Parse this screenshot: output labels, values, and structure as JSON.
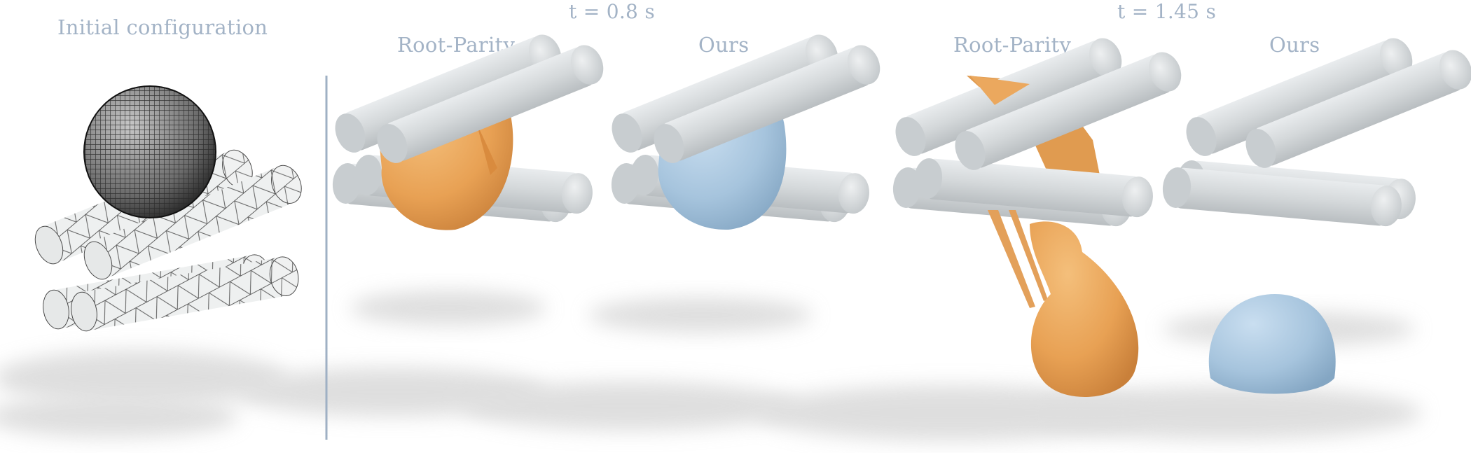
{
  "figure": {
    "initial_label": "Initial configuration",
    "times": [
      {
        "label": "t = 0.8 s",
        "methods": [
          "Root-Parity",
          "Ours"
        ]
      },
      {
        "label": "t = 1.45 s",
        "methods": [
          "Root-Parity",
          "Ours"
        ]
      }
    ]
  },
  "colors": {
    "label": "#a3b3c6",
    "divider": "#9fb0c4",
    "cylinder": "#d5d9db",
    "root_parity": "#e8a559",
    "ours": "#a9c7df",
    "mesh": "#1b1b1b",
    "shadow": "#c9c9c9"
  }
}
